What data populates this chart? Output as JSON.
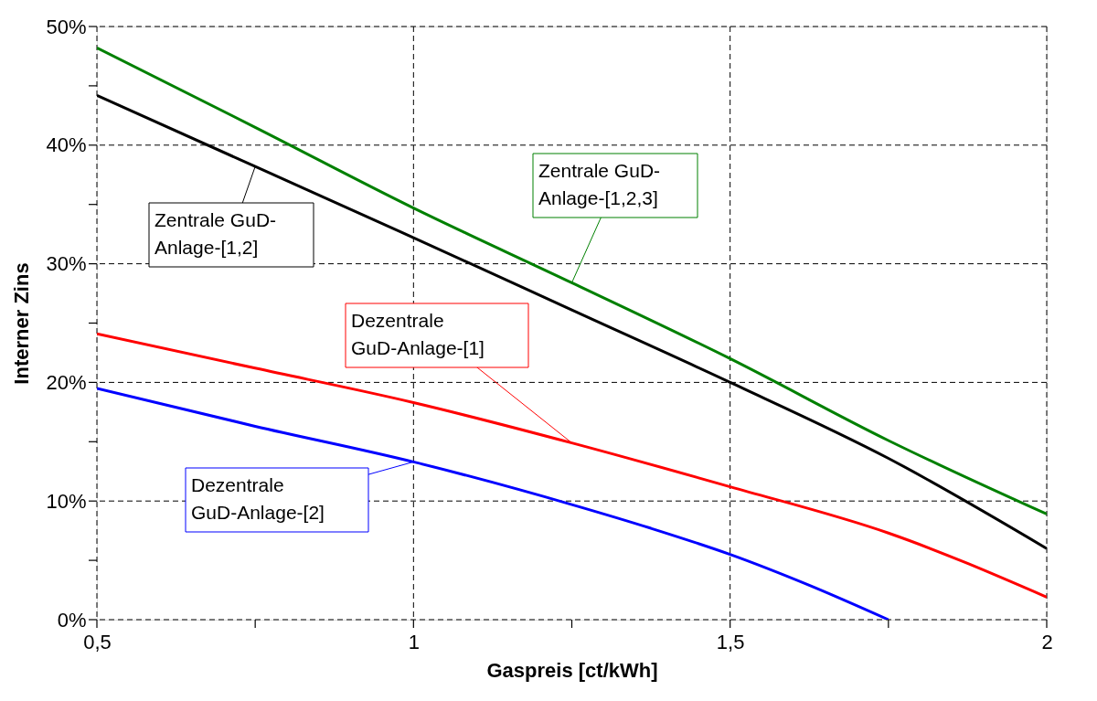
{
  "chart_data": {
    "type": "line",
    "xlabel": "Gaspreis [ct/kWh]",
    "ylabel": "Interner Zins",
    "xlim": [
      0.5,
      2
    ],
    "xticks": [
      {
        "value": 0.5,
        "label": "0,5"
      },
      {
        "value": 0.75,
        "label": null
      },
      1,
      {
        "value": 1.25,
        "label": null
      },
      {
        "value": 1.5,
        "label": "1,5"
      },
      {
        "value": 1.75,
        "label": null
      },
      2
    ],
    "ylim": [
      0,
      50
    ],
    "yticks": [
      {
        "value": 0,
        "label": "0%"
      },
      {
        "value": 5,
        "label": null
      },
      {
        "value": 10,
        "label": "10%"
      },
      {
        "value": 15,
        "label": null
      },
      {
        "value": 20,
        "label": "20%"
      },
      {
        "value": 25,
        "label": null
      },
      {
        "value": 30,
        "label": "30%"
      },
      {
        "value": 35,
        "label": null
      },
      {
        "value": 40,
        "label": "40%"
      },
      {
        "value": 45,
        "label": null
      },
      {
        "value": 50,
        "label": "50%"
      }
    ],
    "x": [
      0.5,
      0.75,
      1,
      1.25,
      1.5,
      1.75,
      2
    ],
    "series": [
      {
        "color": "#008000",
        "values": [
          48.2,
          41.5,
          34.7,
          28.4,
          22.0,
          15.1,
          8.9
        ]
      },
      {
        "color": "#000000",
        "values": [
          44.2,
          38.2,
          32.2,
          26.1,
          20.0,
          13.6,
          6.0
        ]
      },
      {
        "color": "#ff0000",
        "values": [
          24.1,
          21.2,
          18.3,
          14.9,
          11.2,
          7.3,
          1.9
        ]
      },
      {
        "color": "#0000ff",
        "x": [
          0.5,
          0.75,
          1,
          1.25,
          1.375,
          1.5,
          1.625,
          1.75
        ],
        "values": [
          19.5,
          16.3,
          13.3,
          9.7,
          7.7,
          5.5,
          2.9,
          0
        ]
      }
    ],
    "annotations": [
      {
        "text": "Zentrale GuD-\nAnlage-[1,2,3]",
        "x": 1.25,
        "y": 28.4
      },
      {
        "text": "Zentrale GuD-\nAnlage-[1,2]",
        "x": 0.75,
        "y": 38.2
      },
      {
        "text": "Dezentrale\nGuD-Anlage-[1]",
        "x": 1.25,
        "y": 14.9
      },
      {
        "text": "Dezentrale\nGuD-Anlage-[2]",
        "x": 1,
        "y": 13.3
      }
    ],
    "grid": true,
    "marker": "none",
    "line_style": "solid"
  }
}
